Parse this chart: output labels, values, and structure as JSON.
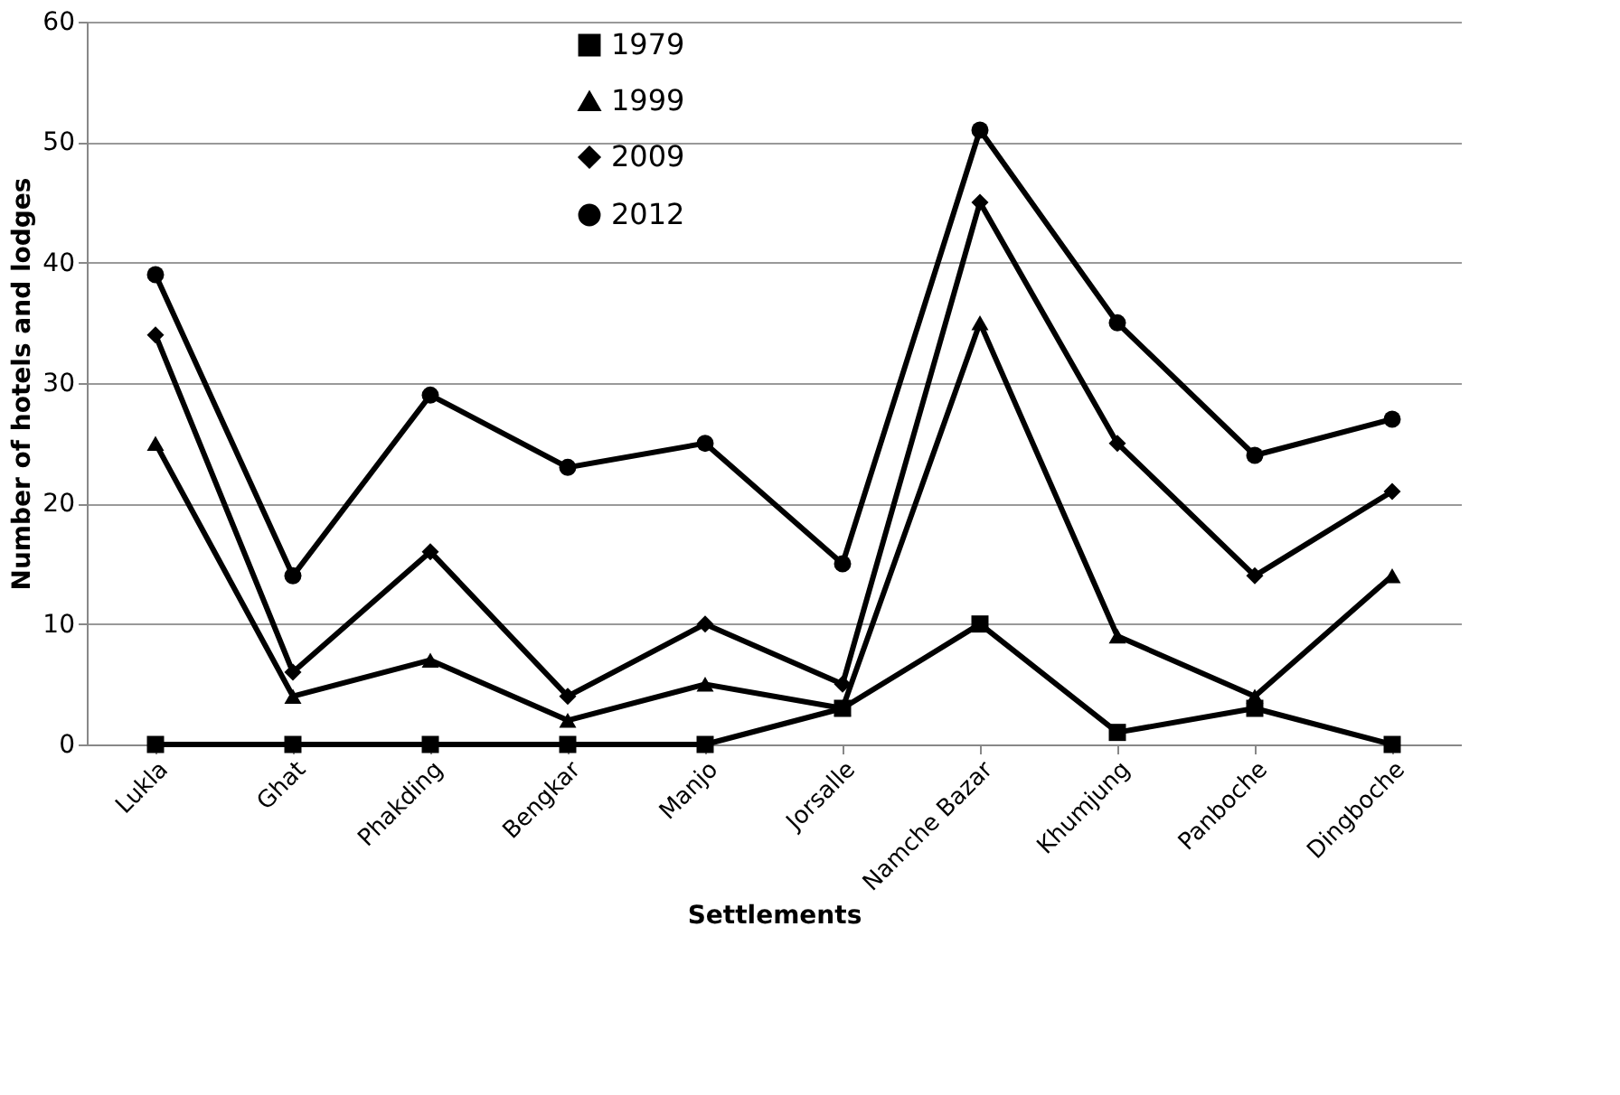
{
  "chart_data": {
    "type": "line",
    "xlabel": "Settlements",
    "ylabel": "Number of hotels and lodges",
    "categories": [
      "Lukla",
      "Ghat",
      "Phakding",
      "Bengkar",
      "Manjo",
      "Jorsalle",
      "Namche Bazar",
      "Khumjung",
      "Panboche",
      "Dingboche"
    ],
    "series": [
      {
        "name": "1979",
        "color": "#000000",
        "marker": "square",
        "values": [
          0,
          0,
          0,
          0,
          0,
          3,
          10,
          1,
          3,
          0
        ]
      },
      {
        "name": "1999",
        "color": "#000000",
        "marker": "triangle",
        "values": [
          25,
          4,
          7,
          2,
          5,
          3,
          35,
          9,
          4,
          14
        ]
      },
      {
        "name": "2009",
        "color": "#000000",
        "marker": "diamond",
        "values": [
          34,
          6,
          16,
          4,
          10,
          5,
          45,
          25,
          14,
          21
        ]
      },
      {
        "name": "2012",
        "color": "#000000",
        "marker": "circle",
        "values": [
          39,
          14,
          29,
          23,
          25,
          15,
          51,
          35,
          24,
          27
        ]
      }
    ],
    "ylim": [
      0,
      60
    ],
    "yticks": [
      0,
      10,
      20,
      30,
      40,
      50,
      60
    ],
    "grid": "y",
    "legend": "top left",
    "line_style": "solid"
  }
}
